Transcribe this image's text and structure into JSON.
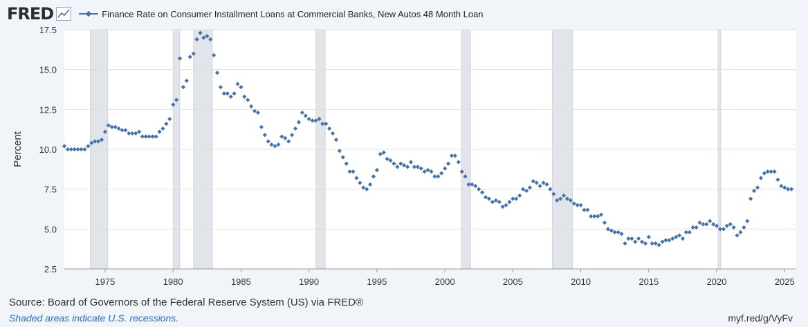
{
  "header": {
    "logo_text": "FRED",
    "logo_icon": "line-chart-icon",
    "legend_label": "Finance Rate on Consumer Installment Loans at Commercial Banks, New Autos 48 Month Loan"
  },
  "footer": {
    "source": "Source: Board of Governors of the Federal Reserve System (US) via FRED®",
    "note": "Shaded areas indicate U.S. recessions.",
    "link": "myf.red/g/VyFv"
  },
  "colors": {
    "series": "#4572a7",
    "recession": "#e1e4e8",
    "background": "#f1f4f8",
    "plot": "#ffffff",
    "grid": "#e0e0e0"
  },
  "chart_data": {
    "type": "scatter",
    "title": "",
    "xlabel": "",
    "ylabel": "Percent",
    "xlim": [
      1972.0,
      2025.8
    ],
    "ylim": [
      2.5,
      17.5
    ],
    "y_ticks": [
      "2.5",
      "5.0",
      "7.5",
      "10.0",
      "12.5",
      "15.0",
      "17.5"
    ],
    "x_ticks": [
      "1975",
      "1980",
      "1985",
      "1990",
      "1995",
      "2000",
      "2005",
      "2010",
      "2015",
      "2020",
      "2025"
    ],
    "grid": true,
    "legend": "top-left",
    "recessions": [
      [
        1973.9,
        1975.2
      ],
      [
        1980.0,
        1980.5
      ],
      [
        1981.5,
        1982.9
      ],
      [
        1990.5,
        1991.2
      ],
      [
        2001.2,
        2001.9
      ],
      [
        2007.9,
        2009.4
      ],
      [
        2020.1,
        2020.3
      ]
    ],
    "series": [
      {
        "name": "Finance Rate on Consumer Installment Loans at Commercial Banks, New Autos 48 Month Loan",
        "points": [
          [
            1972.0,
            10.2
          ],
          [
            1972.25,
            10.0
          ],
          [
            1972.5,
            10.0
          ],
          [
            1972.75,
            10.0
          ],
          [
            1973.0,
            10.0
          ],
          [
            1973.25,
            10.0
          ],
          [
            1973.5,
            10.0
          ],
          [
            1973.75,
            10.2
          ],
          [
            1974.0,
            10.4
          ],
          [
            1974.25,
            10.5
          ],
          [
            1974.5,
            10.5
          ],
          [
            1974.75,
            10.6
          ],
          [
            1975.0,
            11.1
          ],
          [
            1975.25,
            11.5
          ],
          [
            1975.5,
            11.4
          ],
          [
            1975.75,
            11.4
          ],
          [
            1976.0,
            11.3
          ],
          [
            1976.25,
            11.2
          ],
          [
            1976.5,
            11.2
          ],
          [
            1976.75,
            11.0
          ],
          [
            1977.0,
            11.0
          ],
          [
            1977.25,
            11.0
          ],
          [
            1977.5,
            11.1
          ],
          [
            1977.75,
            10.8
          ],
          [
            1978.0,
            10.8
          ],
          [
            1978.25,
            10.8
          ],
          [
            1978.5,
            10.8
          ],
          [
            1978.75,
            10.8
          ],
          [
            1979.0,
            11.1
          ],
          [
            1979.25,
            11.3
          ],
          [
            1979.5,
            11.6
          ],
          [
            1979.75,
            11.9
          ],
          [
            1980.0,
            12.8
          ],
          [
            1980.25,
            13.1
          ],
          [
            1980.5,
            15.7
          ],
          [
            1980.75,
            13.9
          ],
          [
            1981.0,
            14.3
          ],
          [
            1981.25,
            15.8
          ],
          [
            1981.5,
            16.0
          ],
          [
            1981.75,
            16.9
          ],
          [
            1982.0,
            17.3
          ],
          [
            1982.25,
            17.0
          ],
          [
            1982.5,
            17.1
          ],
          [
            1982.75,
            16.9
          ],
          [
            1983.0,
            15.9
          ],
          [
            1983.25,
            14.8
          ],
          [
            1983.5,
            13.9
          ],
          [
            1983.75,
            13.5
          ],
          [
            1984.0,
            13.5
          ],
          [
            1984.25,
            13.3
          ],
          [
            1984.5,
            13.5
          ],
          [
            1984.75,
            14.1
          ],
          [
            1985.0,
            13.9
          ],
          [
            1985.25,
            13.3
          ],
          [
            1985.5,
            13.1
          ],
          [
            1985.75,
            12.7
          ],
          [
            1986.0,
            12.4
          ],
          [
            1986.25,
            12.3
          ],
          [
            1986.5,
            11.4
          ],
          [
            1986.75,
            10.9
          ],
          [
            1987.0,
            10.5
          ],
          [
            1987.25,
            10.3
          ],
          [
            1987.5,
            10.2
          ],
          [
            1987.75,
            10.3
          ],
          [
            1988.0,
            10.8
          ],
          [
            1988.25,
            10.7
          ],
          [
            1988.5,
            10.5
          ],
          [
            1988.75,
            10.9
          ],
          [
            1989.0,
            11.3
          ],
          [
            1989.25,
            11.7
          ],
          [
            1989.5,
            12.3
          ],
          [
            1989.75,
            12.1
          ],
          [
            1990.0,
            11.9
          ],
          [
            1990.25,
            11.8
          ],
          [
            1990.5,
            11.8
          ],
          [
            1990.75,
            11.9
          ],
          [
            1991.0,
            11.6
          ],
          [
            1991.25,
            11.6
          ],
          [
            1991.5,
            11.3
          ],
          [
            1991.75,
            11.0
          ],
          [
            1992.0,
            10.6
          ],
          [
            1992.25,
            9.9
          ],
          [
            1992.5,
            9.5
          ],
          [
            1992.75,
            9.1
          ],
          [
            1993.0,
            8.6
          ],
          [
            1993.25,
            8.6
          ],
          [
            1993.5,
            8.2
          ],
          [
            1993.75,
            7.9
          ],
          [
            1994.0,
            7.6
          ],
          [
            1994.25,
            7.5
          ],
          [
            1994.5,
            7.8
          ],
          [
            1994.75,
            8.3
          ],
          [
            1995.0,
            8.7
          ],
          [
            1995.25,
            9.7
          ],
          [
            1995.5,
            9.8
          ],
          [
            1995.75,
            9.4
          ],
          [
            1996.0,
            9.3
          ],
          [
            1996.25,
            9.1
          ],
          [
            1996.5,
            8.9
          ],
          [
            1996.75,
            9.1
          ],
          [
            1997.0,
            9.0
          ],
          [
            1997.25,
            8.9
          ],
          [
            1997.5,
            9.2
          ],
          [
            1997.75,
            8.9
          ],
          [
            1998.0,
            8.9
          ],
          [
            1998.25,
            8.8
          ],
          [
            1998.5,
            8.6
          ],
          [
            1998.75,
            8.7
          ],
          [
            1999.0,
            8.6
          ],
          [
            1999.25,
            8.3
          ],
          [
            1999.5,
            8.3
          ],
          [
            1999.75,
            8.5
          ],
          [
            2000.0,
            8.8
          ],
          [
            2000.25,
            9.1
          ],
          [
            2000.5,
            9.6
          ],
          [
            2000.75,
            9.6
          ],
          [
            2001.0,
            9.2
          ],
          [
            2001.25,
            8.6
          ],
          [
            2001.5,
            8.3
          ],
          [
            2001.75,
            7.8
          ],
          [
            2002.0,
            7.8
          ],
          [
            2002.25,
            7.7
          ],
          [
            2002.5,
            7.5
          ],
          [
            2002.75,
            7.3
          ],
          [
            2003.0,
            7.0
          ],
          [
            2003.25,
            6.9
          ],
          [
            2003.5,
            6.7
          ],
          [
            2003.75,
            6.8
          ],
          [
            2004.0,
            6.7
          ],
          [
            2004.25,
            6.4
          ],
          [
            2004.5,
            6.5
          ],
          [
            2004.75,
            6.7
          ],
          [
            2005.0,
            6.9
          ],
          [
            2005.25,
            6.9
          ],
          [
            2005.5,
            7.1
          ],
          [
            2005.75,
            7.5
          ],
          [
            2006.0,
            7.4
          ],
          [
            2006.25,
            7.6
          ],
          [
            2006.5,
            8.0
          ],
          [
            2006.75,
            7.9
          ],
          [
            2007.0,
            7.7
          ],
          [
            2007.25,
            7.9
          ],
          [
            2007.5,
            7.8
          ],
          [
            2007.75,
            7.5
          ],
          [
            2008.0,
            7.2
          ],
          [
            2008.25,
            6.8
          ],
          [
            2008.5,
            6.9
          ],
          [
            2008.75,
            7.1
          ],
          [
            2009.0,
            6.9
          ],
          [
            2009.25,
            6.8
          ],
          [
            2009.5,
            6.6
          ],
          [
            2009.75,
            6.5
          ],
          [
            2010.0,
            6.5
          ],
          [
            2010.25,
            6.2
          ],
          [
            2010.5,
            6.2
          ],
          [
            2010.75,
            5.8
          ],
          [
            2011.0,
            5.8
          ],
          [
            2011.25,
            5.8
          ],
          [
            2011.5,
            5.9
          ],
          [
            2011.75,
            5.4
          ],
          [
            2012.0,
            5.0
          ],
          [
            2012.25,
            4.9
          ],
          [
            2012.5,
            4.8
          ],
          [
            2012.75,
            4.8
          ],
          [
            2013.0,
            4.7
          ],
          [
            2013.25,
            4.1
          ],
          [
            2013.5,
            4.4
          ],
          [
            2013.75,
            4.4
          ],
          [
            2014.0,
            4.2
          ],
          [
            2014.25,
            4.4
          ],
          [
            2014.5,
            4.2
          ],
          [
            2014.75,
            4.1
          ],
          [
            2015.0,
            4.5
          ],
          [
            2015.25,
            4.1
          ],
          [
            2015.5,
            4.1
          ],
          [
            2015.75,
            4.0
          ],
          [
            2016.0,
            4.2
          ],
          [
            2016.25,
            4.3
          ],
          [
            2016.5,
            4.3
          ],
          [
            2016.75,
            4.4
          ],
          [
            2017.0,
            4.5
          ],
          [
            2017.25,
            4.6
          ],
          [
            2017.5,
            4.4
          ],
          [
            2017.75,
            4.8
          ],
          [
            2018.0,
            4.8
          ],
          [
            2018.25,
            5.1
          ],
          [
            2018.5,
            5.1
          ],
          [
            2018.75,
            5.4
          ],
          [
            2019.0,
            5.3
          ],
          [
            2019.25,
            5.3
          ],
          [
            2019.5,
            5.5
          ],
          [
            2019.75,
            5.3
          ],
          [
            2020.0,
            5.2
          ],
          [
            2020.25,
            5.0
          ],
          [
            2020.5,
            5.0
          ],
          [
            2020.75,
            5.2
          ],
          [
            2021.0,
            5.3
          ],
          [
            2021.25,
            5.1
          ],
          [
            2021.5,
            4.6
          ],
          [
            2021.75,
            4.8
          ],
          [
            2022.0,
            5.1
          ],
          [
            2022.25,
            5.5
          ],
          [
            2022.5,
            6.9
          ],
          [
            2022.75,
            7.4
          ],
          [
            2023.0,
            7.6
          ],
          [
            2023.25,
            8.2
          ],
          [
            2023.5,
            8.5
          ],
          [
            2023.75,
            8.6
          ],
          [
            2024.0,
            8.6
          ],
          [
            2024.25,
            8.6
          ],
          [
            2024.5,
            8.1
          ],
          [
            2024.75,
            7.7
          ],
          [
            2025.0,
            7.6
          ],
          [
            2025.25,
            7.5
          ],
          [
            2025.5,
            7.5
          ]
        ]
      }
    ]
  }
}
